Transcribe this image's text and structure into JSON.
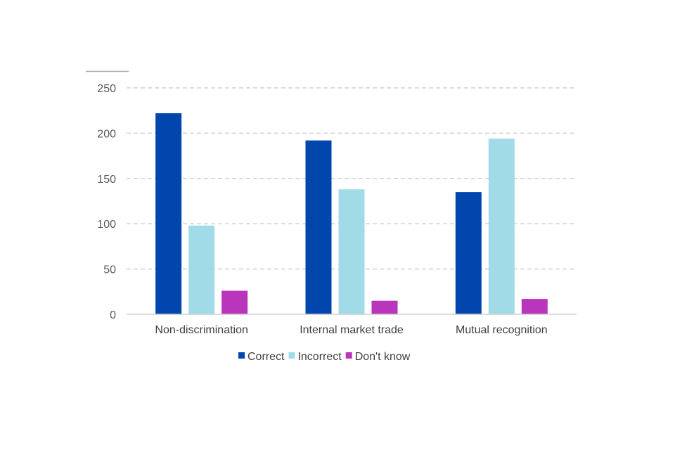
{
  "chart_data": {
    "type": "bar",
    "categories": [
      "Non-discrimination",
      "Internal market trade",
      "Mutual recognition"
    ],
    "series": [
      {
        "name": "Correct",
        "values": [
          222,
          192,
          135
        ],
        "color": "#0046AD"
      },
      {
        "name": "Incorrect",
        "values": [
          98,
          138,
          194
        ],
        "color": "#A1DBE8"
      },
      {
        "name": "Don't know",
        "values": [
          26,
          15,
          17
        ],
        "color": "#B935BC"
      }
    ],
    "ylim": [
      0,
      250
    ],
    "yticks": [
      0,
      50,
      100,
      150,
      200,
      250
    ],
    "grid": true,
    "legend_position": "bottom"
  }
}
